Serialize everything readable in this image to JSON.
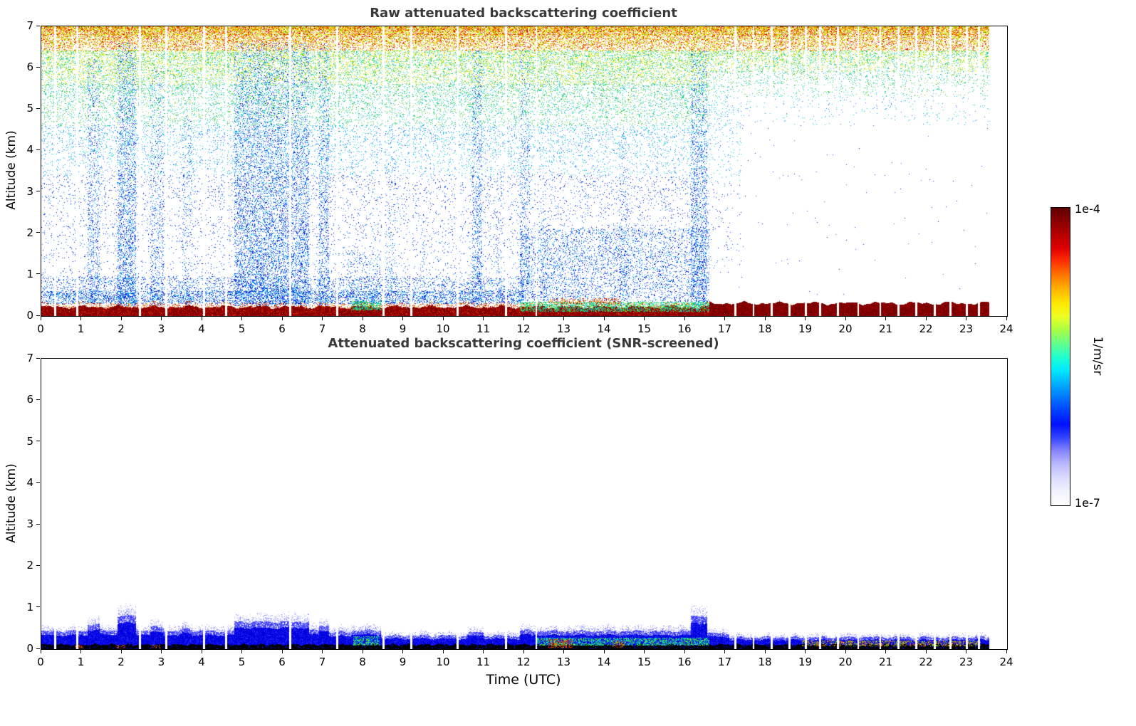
{
  "figure": {
    "panels": [
      {
        "title": "Raw attenuated backscattering coefficient",
        "ylabel": "Altitude (km)"
      },
      {
        "title": "Attenuated backscattering coefficient (SNR-screened)",
        "ylabel": "Altitude (km)"
      }
    ],
    "xlabel": "Time (UTC)",
    "colorbar": {
      "max_label": "1e-4",
      "min_label": "1e-7",
      "unit_label": "1/m/sr"
    }
  },
  "chart_data": {
    "type": "heatmap",
    "x_axis": {
      "label": "Time (UTC)",
      "range": [
        0,
        24
      ],
      "ticks": [
        0,
        1,
        2,
        3,
        4,
        5,
        6,
        7,
        8,
        9,
        10,
        11,
        12,
        13,
        14,
        15,
        16,
        17,
        18,
        19,
        20,
        21,
        22,
        23,
        24
      ]
    },
    "y_axis": {
      "label": "Altitude (km)",
      "range": [
        0,
        7
      ],
      "ticks": [
        0,
        1,
        2,
        3,
        4,
        5,
        6,
        7
      ]
    },
    "colorbar": {
      "scale": "log",
      "min": 1e-07,
      "max": 0.0001,
      "unit": "1/m/sr",
      "min_label": "1e-7",
      "max_label": "1e-4",
      "colors": [
        "#5e0000",
        "#8b0000",
        "#b40000",
        "#e00000",
        "#ff3300",
        "#ff7700",
        "#ffb300",
        "#ffe600",
        "#eeff22",
        "#aaff44",
        "#66ff88",
        "#22ffcc",
        "#00eaff",
        "#00b0ff",
        "#0077ff",
        "#0040ff",
        "#0010ff",
        "#3344ff",
        "#8888ff",
        "#bbbbff",
        "#ddddff",
        "#f2f2ff",
        "#ffffff"
      ]
    },
    "data_end": 23.55,
    "gaps": [
      0.35,
      0.9,
      2.45,
      3.1,
      4.05,
      4.6,
      6.18,
      7.35,
      8.5,
      9.2,
      10.35,
      11.55,
      12.3,
      17.25,
      17.7,
      18.15,
      18.6,
      19.0,
      19.35,
      19.8,
      20.3,
      20.85,
      21.3,
      21.75,
      22.2,
      22.6,
      23.0,
      23.3
    ],
    "palettes": {
      "top": [
        "#ffcc00",
        "#ff9900",
        "#ee3300",
        "#ffee00",
        "#99dd00",
        "#ff6600",
        "#dd0000",
        "#aaee00"
      ],
      "high": [
        "#ccee00",
        "#88dd00",
        "#44cc44",
        "#00dd99",
        "#ffee00",
        "#00cccc"
      ],
      "mid": [
        "#33cc66",
        "#00ccaa",
        "#00bbdd",
        "#66cc00",
        "#00dd88"
      ],
      "midlow": [
        "#00aaee",
        "#0088ff",
        "#00ccdd",
        "#3366ff",
        "#00ddcc"
      ],
      "low": [
        "#0033ee",
        "#0055ff",
        "#0000cc",
        "#0077ff"
      ],
      "streak": [
        "#0022dd",
        "#0000cc",
        "#1144ff",
        "#0066ff",
        "#0099ff",
        "#00bbff"
      ],
      "greencyan": [
        "#00e6b8",
        "#2bd94d",
        "#00ccff",
        "#7fe600",
        "#00cc88"
      ],
      "warm": [
        "#cc2200",
        "#e66000",
        "#ffaa00",
        "#b30000"
      ],
      "orangegreen": [
        "#ff8800",
        "#ffaa00",
        "#55cc22",
        "#ff5500",
        "#ccdd00",
        "#33bb44"
      ]
    },
    "panels": [
      {
        "title": "Raw attenuated backscattering coefficient",
        "noise_regions": [
          {
            "t": [
              0,
              16.6
            ],
            "bands": [
              {
                "alt": [
                  6.8,
                  7.0
                ],
                "density": 0.85,
                "palette": "top"
              },
              {
                "alt": [
                  6.4,
                  6.8
                ],
                "density": 0.5,
                "palette": "top"
              },
              {
                "alt": [
                  5.6,
                  6.4
                ],
                "density": 0.3,
                "palette": "high"
              },
              {
                "alt": [
                  4.6,
                  5.6
                ],
                "density": 0.16,
                "palette": "mid"
              },
              {
                "alt": [
                  3.4,
                  4.6
                ],
                "density": 0.09,
                "palette": "midlow"
              },
              {
                "alt": [
                  2.2,
                  3.4
                ],
                "density": 0.055,
                "palette": "low"
              },
              {
                "alt": [
                  0.9,
                  2.2
                ],
                "density": 0.04,
                "palette": "low"
              },
              {
                "alt": [
                  0.45,
                  0.9
                ],
                "density": 0.06,
                "palette": "low"
              }
            ]
          },
          {
            "t": [
              16.6,
              23.55
            ],
            "bands": [
              {
                "alt": [
                  6.8,
                  7.0
                ],
                "density": 0.85,
                "palette": "top"
              },
              {
                "alt": [
                  6.4,
                  6.8
                ],
                "density": 0.5,
                "palette": "top"
              },
              {
                "alt": [
                  5.9,
                  6.4
                ],
                "density": 0.26,
                "palette": "high"
              },
              {
                "alt": [
                  5.3,
                  5.9
                ],
                "density": 0.1,
                "palette": "mid"
              },
              {
                "alt": [
                  4.6,
                  5.3
                ],
                "density": 0.025,
                "palette": "midlow"
              },
              {
                "alt": [
                  0.5,
                  4.6
                ],
                "density": 0.0015,
                "palette": "low"
              }
            ]
          },
          {
            "t": [
              16.6,
              17.4
            ],
            "bands": [
              {
                "alt": [
                  3.2,
                  5.3
                ],
                "density": 0.05,
                "palette": "midlow"
              },
              {
                "alt": [
                  1.0,
                  3.2
                ],
                "density": 0.02,
                "palette": "low"
              }
            ]
          }
        ],
        "streaks": [
          {
            "t": [
              1.15,
              1.45
            ],
            "top": 6.2,
            "density": 0.18
          },
          {
            "t": [
              1.9,
              2.35
            ],
            "top": 6.6,
            "density": 0.3
          },
          {
            "t": [
              2.7,
              3.05
            ],
            "top": 6.0,
            "density": 0.14
          },
          {
            "t": [
              3.5,
              3.75
            ],
            "top": 5.2,
            "density": 0.1
          },
          {
            "t": [
              4.8,
              6.65
            ],
            "top": 6.6,
            "density": 0.28
          },
          {
            "t": [
              6.9,
              7.15
            ],
            "top": 6.6,
            "density": 0.22
          },
          {
            "t": [
              8.55,
              8.8
            ],
            "top": 4.0,
            "density": 0.1
          },
          {
            "t": [
              9.45,
              9.6
            ],
            "top": 2.5,
            "density": 0.07
          },
          {
            "t": [
              10.7,
              10.95
            ],
            "top": 6.4,
            "density": 0.22
          },
          {
            "t": [
              11.3,
              11.45
            ],
            "top": 3.5,
            "density": 0.08
          },
          {
            "t": [
              11.9,
              12.15
            ],
            "top": 6.4,
            "density": 0.16
          },
          {
            "t": [
              12.4,
              12.6
            ],
            "top": 3.0,
            "density": 0.1
          },
          {
            "t": [
              13.25,
              13.45
            ],
            "top": 2.2,
            "density": 0.08
          },
          {
            "t": [
              14.35,
              14.6
            ],
            "top": 4.5,
            "density": 0.12
          },
          {
            "t": [
              15.35,
              15.55
            ],
            "top": 2.0,
            "density": 0.07
          },
          {
            "t": [
              16.15,
              16.55
            ],
            "top": 6.4,
            "density": 0.26
          }
        ],
        "enhancements": [
          {
            "t": [
              0,
              12.0
            ],
            "alt": [
              0.3,
              0.6
            ],
            "palette": "streak",
            "density": 0.3
          },
          {
            "t": [
              0,
              12.0
            ],
            "alt": [
              0.6,
              0.95
            ],
            "palette": "streak",
            "density": 0.1
          },
          {
            "t": [
              11.9,
              16.6
            ],
            "alt": [
              0.35,
              2.1
            ],
            "palette": "streak",
            "density": 0.11
          },
          {
            "t": [
              7.6,
              8.45
            ],
            "alt": [
              0.3,
              1.5
            ],
            "palette": "streak",
            "density": 0.08
          }
        ],
        "surface": {
          "transition_time": 16.6,
          "left_top_km": 0.2,
          "right_top_km": 0.3
        },
        "surface_patches": [
          {
            "t": [
              7.7,
              8.45
            ],
            "alt": [
              0.14,
              0.36
            ],
            "palette": "greencyan",
            "density": 0.5
          },
          {
            "t": [
              11.9,
              16.6
            ],
            "alt": [
              0.12,
              0.34
            ],
            "palette": "greencyan",
            "density": 0.45
          },
          {
            "t": [
              12.6,
              14.4
            ],
            "alt": [
              0.3,
              0.42
            ],
            "palette": "warm",
            "density": 0.3
          }
        ]
      },
      {
        "title": "Attenuated backscattering coefficient (SNR-screened)",
        "blue_layer": {
          "segments": [
            {
              "t": [
                0,
                1.15
              ],
              "top": 0.48
            },
            {
              "t": [
                1.15,
                1.45
              ],
              "top": 0.65
            },
            {
              "t": [
                1.45,
                1.9
              ],
              "top": 0.5
            },
            {
              "t": [
                1.9,
                2.35
              ],
              "top": 0.88
            },
            {
              "t": [
                2.35,
                2.7
              ],
              "top": 0.5
            },
            {
              "t": [
                2.7,
                3.05
              ],
              "top": 0.58
            },
            {
              "t": [
                3.05,
                3.5
              ],
              "top": 0.48
            },
            {
              "t": [
                3.5,
                3.75
              ],
              "top": 0.55
            },
            {
              "t": [
                3.75,
                4.8
              ],
              "top": 0.48
            },
            {
              "t": [
                4.8,
                6.65
              ],
              "top": 0.72
            },
            {
              "t": [
                6.65,
                6.9
              ],
              "top": 0.5
            },
            {
              "t": [
                6.9,
                7.15
              ],
              "top": 0.62
            },
            {
              "t": [
                7.15,
                7.7
              ],
              "top": 0.45
            },
            {
              "t": [
                7.7,
                8.45
              ],
              "top": 0.5
            },
            {
              "t": [
                8.45,
                10.6
              ],
              "top": 0.36
            },
            {
              "t": [
                10.6,
                11.0
              ],
              "top": 0.45
            },
            {
              "t": [
                11.0,
                11.9
              ],
              "top": 0.36
            },
            {
              "t": [
                11.9,
                12.2
              ],
              "top": 0.5
            },
            {
              "t": [
                12.2,
                16.15
              ],
              "top": 0.48
            },
            {
              "t": [
                16.15,
                16.55
              ],
              "top": 0.88
            },
            {
              "t": [
                16.55,
                17.1
              ],
              "top": 0.42
            },
            {
              "t": [
                17.1,
                23.55
              ],
              "top": 0.32
            }
          ]
        },
        "black_band_top_km": 0.1,
        "spots": [
          {
            "t": [
              7.75,
              8.4
            ],
            "alt": [
              0.1,
              0.3
            ],
            "palette": "greencyan",
            "density": 0.5
          },
          {
            "t": [
              12.3,
              16.6
            ],
            "alt": [
              0.1,
              0.26
            ],
            "palette": "greencyan",
            "density": 0.5
          },
          {
            "t": [
              12.6,
              13.2
            ],
            "alt": [
              0.05,
              0.24
            ],
            "palette": "warm",
            "density": 0.45
          },
          {
            "t": [
              14.2,
              14.5
            ],
            "alt": [
              0.05,
              0.2
            ],
            "palette": "warm",
            "density": 0.3
          },
          {
            "t": [
              18.9,
              23.35
            ],
            "alt": [
              0.07,
              0.2
            ],
            "palette": "orangegreen",
            "density": 0.4
          },
          {
            "t": [
              0.85,
              1.05
            ],
            "alt": [
              0.02,
              0.09
            ],
            "palette": "warm",
            "density": 0.4
          },
          {
            "t": [
              1.85,
              2.1
            ],
            "alt": [
              0.02,
              0.09
            ],
            "palette": "warm",
            "density": 0.35
          },
          {
            "t": [
              2.75,
              2.95
            ],
            "alt": [
              0.02,
              0.09
            ],
            "palette": "warm",
            "density": 0.3
          }
        ]
      }
    ]
  }
}
